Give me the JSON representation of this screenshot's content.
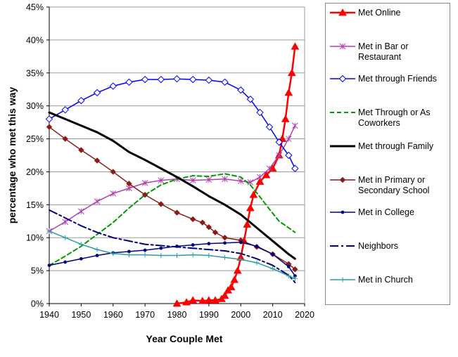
{
  "chart_data": {
    "type": "line",
    "title": "",
    "xlabel": "Year Couple Met",
    "ylabel": "percentage who met this way",
    "xlim": [
      1940,
      2020
    ],
    "ylim": [
      0,
      45
    ],
    "xticks": [
      1940,
      1950,
      1960,
      1970,
      1980,
      1990,
      2000,
      2010,
      2020
    ],
    "yticks": [
      0,
      5,
      10,
      15,
      20,
      25,
      30,
      35,
      40,
      45
    ],
    "ytick_labels": [
      "0%",
      "5%",
      "10%",
      "15%",
      "20%",
      "25%",
      "30%",
      "35%",
      "40%",
      "45%"
    ],
    "grid": "horizontal",
    "legend_position": "right",
    "series": [
      {
        "name": "Met Online",
        "color": "#ff0000",
        "marker": "triangle",
        "dash": "solid",
        "width": 2.5,
        "x": [
          1980,
          1983,
          1985,
          1988,
          1990,
          1992,
          1994,
          1995,
          1996,
          1997,
          1998,
          1999,
          2000,
          2001,
          2002,
          2003,
          2004,
          2006,
          2008,
          2010,
          2012,
          2013,
          2014,
          2015,
          2016,
          2017
        ],
        "y": [
          0,
          0.2,
          0.5,
          0.4,
          0.5,
          0.5,
          0.7,
          1.2,
          2,
          2.5,
          3.6,
          5,
          7,
          9.5,
          12,
          14.5,
          16.5,
          18.5,
          19.5,
          20.5,
          22.5,
          25,
          28,
          32,
          35,
          39
        ]
      },
      {
        "name": "Met in Bar or Restaurant",
        "color": "#b040b0",
        "marker": "star",
        "dash": "solid",
        "width": 1.5,
        "x": [
          1940,
          1945,
          1950,
          1955,
          1960,
          1965,
          1970,
          1975,
          1980,
          1985,
          1990,
          1995,
          2000,
          2003,
          2006,
          2009,
          2012,
          2015,
          2017
        ],
        "y": [
          11,
          12.4,
          14,
          15.5,
          16.7,
          17.5,
          18.3,
          18.7,
          18.9,
          18.7,
          18.8,
          18.9,
          18.6,
          18.4,
          19.2,
          20.5,
          22.5,
          25,
          27
        ]
      },
      {
        "name": "Met through Friends",
        "color": "#0000ff",
        "marker": "diamond-open",
        "dash": "solid",
        "width": 1.5,
        "x": [
          1940,
          1945,
          1950,
          1955,
          1960,
          1965,
          1970,
          1975,
          1980,
          1985,
          1990,
          1995,
          2000,
          2003,
          2006,
          2009,
          2012,
          2015,
          2017
        ],
        "y": [
          28,
          29.4,
          30.8,
          32,
          33,
          33.6,
          34,
          34,
          34.1,
          34,
          33.9,
          33.6,
          32.4,
          31,
          29,
          26.8,
          24.5,
          22.5,
          20.5
        ]
      },
      {
        "name": "Met Through or As Coworkers",
        "color": "#009900",
        "marker": "none",
        "dash": "dashed",
        "width": 2,
        "x": [
          1940,
          1945,
          1950,
          1955,
          1960,
          1965,
          1970,
          1975,
          1980,
          1985,
          1990,
          1995,
          2000,
          2003,
          2006,
          2009,
          2012,
          2015,
          2017
        ],
        "y": [
          5.8,
          7.2,
          8.7,
          10.5,
          12.3,
          14.5,
          16.5,
          18,
          18.9,
          19.4,
          19.3,
          19.7,
          19.2,
          18,
          16.2,
          14.3,
          12.5,
          11.5,
          10.8
        ]
      },
      {
        "name": "Met through Family",
        "color": "#000000",
        "marker": "none",
        "dash": "solid",
        "width": 3,
        "x": [
          1940,
          1945,
          1950,
          1955,
          1960,
          1965,
          1970,
          1975,
          1980,
          1985,
          1990,
          1995,
          2000,
          2005,
          2010,
          2015,
          2017
        ],
        "y": [
          29,
          28,
          27,
          26,
          24.7,
          23,
          21.8,
          20.5,
          19.2,
          17.8,
          16.3,
          15,
          13.5,
          11.5,
          9.5,
          7.5,
          6.8
        ]
      },
      {
        "name": "Met in Primary or Secondary School",
        "color": "#8b1a1a",
        "marker": "diamond",
        "dash": "solid",
        "width": 1.5,
        "x": [
          1940,
          1945,
          1950,
          1955,
          1960,
          1965,
          1970,
          1975,
          1980,
          1985,
          1988,
          1990,
          1992,
          1995,
          2000,
          2005,
          2010,
          2015,
          2017
        ],
        "y": [
          26.8,
          25,
          23.3,
          21.7,
          20,
          18.2,
          16.5,
          15.1,
          13.8,
          12.8,
          12.3,
          11.6,
          10.8,
          10,
          9.6,
          8.6,
          7.5,
          6,
          5.2
        ]
      },
      {
        "name": "Met in College",
        "color": "#000080",
        "marker": "dot",
        "dash": "solid",
        "width": 1.5,
        "x": [
          1940,
          1945,
          1950,
          1955,
          1960,
          1965,
          1970,
          1975,
          1980,
          1985,
          1990,
          1995,
          2000,
          2005,
          2010,
          2015,
          2017
        ],
        "y": [
          5.8,
          6.3,
          6.8,
          7.3,
          7.7,
          7.9,
          8.1,
          8.4,
          8.7,
          8.9,
          9.1,
          9.2,
          9.3,
          8.7,
          7.5,
          5.6,
          4.2
        ]
      },
      {
        "name": "Neighbors",
        "color": "#000080",
        "marker": "none",
        "dash": "dashdot",
        "width": 2,
        "x": [
          1940,
          1945,
          1950,
          1955,
          1960,
          1965,
          1970,
          1975,
          1980,
          1985,
          1990,
          1995,
          2000,
          2005,
          2010,
          2015,
          2017
        ],
        "y": [
          14.2,
          13,
          11.8,
          10.8,
          10,
          9.5,
          9,
          8.8,
          8.6,
          8.4,
          8.2,
          8,
          7.6,
          6.8,
          5.8,
          4.3,
          3.2
        ]
      },
      {
        "name": "Met in Church",
        "color": "#2a9d9d",
        "marker": "plus",
        "dash": "solid",
        "width": 1.5,
        "x": [
          1940,
          1945,
          1950,
          1955,
          1960,
          1965,
          1970,
          1975,
          1980,
          1985,
          1990,
          1995,
          2000,
          2005,
          2010,
          2015,
          2017
        ],
        "y": [
          11,
          10,
          9,
          8.2,
          7.6,
          7.4,
          7.4,
          7.3,
          7.3,
          7.4,
          7.3,
          7,
          6.7,
          6.2,
          5.3,
          4.2,
          3.8
        ]
      }
    ]
  }
}
